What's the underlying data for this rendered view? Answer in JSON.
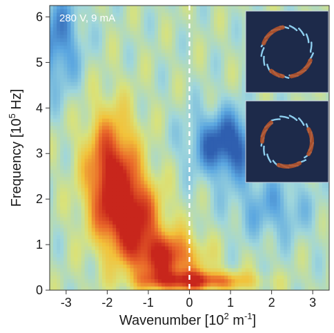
{
  "chart_data": {
    "type": "heatmap",
    "annotation": "280 V, 9 mA",
    "xlabel": {
      "main": "Wavenumber [10",
      "sup": "2",
      "tail": " m",
      "sup2": "-1",
      "end": "]"
    },
    "ylabel": {
      "main": "Frequency [10",
      "sup": "5",
      "end": " Hz]"
    },
    "xlim": [
      -3.4,
      3.4
    ],
    "ylim": [
      0,
      6.25
    ],
    "xticks": [
      "-3",
      "-2",
      "-1",
      "0",
      "1",
      "2",
      "3"
    ],
    "yticks": [
      "0",
      "1",
      "2",
      "3",
      "4",
      "5",
      "6"
    ],
    "zero_line": 0,
    "colormap": [
      "#2f5fb0",
      "#5aa6e0",
      "#9fd6dc",
      "#d9e27a",
      "#f2c23a",
      "#ea6a2a",
      "#c8261c"
    ],
    "background_level": 0.4,
    "features": [
      {
        "kx": -1.9,
        "f": 2.6,
        "sx": 0.45,
        "sf": 0.9,
        "amp": 0.6
      },
      {
        "kx": -1.4,
        "f": 1.6,
        "sx": 0.5,
        "sf": 0.6,
        "amp": 0.55
      },
      {
        "kx": -0.6,
        "f": 0.7,
        "sx": 0.6,
        "sf": 0.4,
        "amp": 0.55
      },
      {
        "kx": 0.2,
        "f": 0.2,
        "sx": 0.9,
        "sf": 0.15,
        "amp": 0.5
      },
      {
        "kx": 0.9,
        "f": 3.2,
        "sx": 0.6,
        "sf": 0.5,
        "amp": -0.45
      },
      {
        "kx": -3.2,
        "f": 5.5,
        "sx": 0.4,
        "sf": 0.8,
        "amp": -0.3
      },
      {
        "kx": 2.0,
        "f": 1.8,
        "sx": 0.7,
        "sf": 0.5,
        "amp": -0.2
      }
    ],
    "insets": [
      {
        "name": "inset-ring-top"
      },
      {
        "name": "inset-ring-bottom"
      }
    ]
  }
}
